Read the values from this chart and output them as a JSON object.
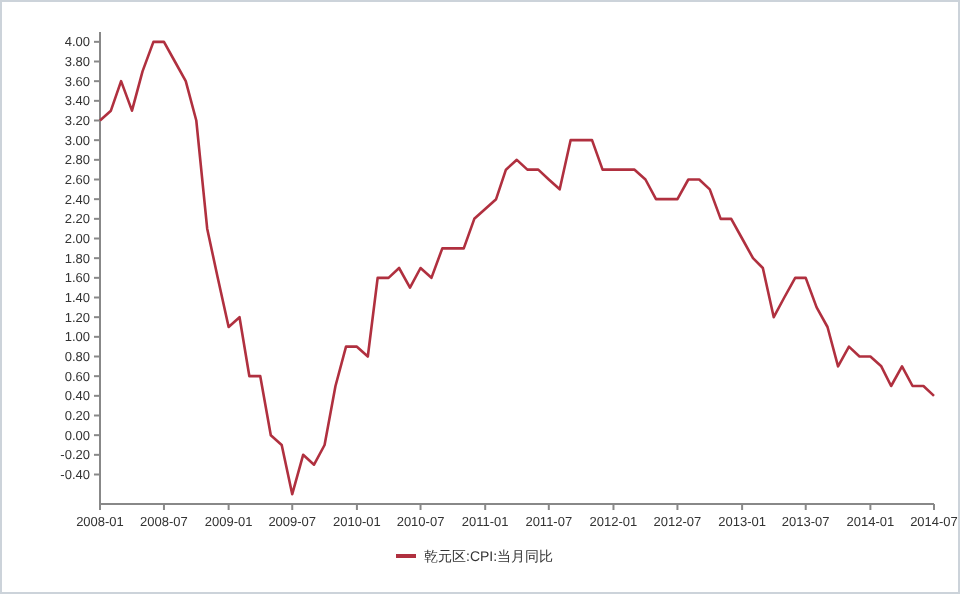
{
  "chart_data": {
    "type": "line",
    "x": [
      "2008-01",
      "2008-02",
      "2008-03",
      "2008-04",
      "2008-05",
      "2008-06",
      "2008-07",
      "2008-08",
      "2008-09",
      "2008-10",
      "2008-11",
      "2008-12",
      "2009-01",
      "2009-02",
      "2009-03",
      "2009-04",
      "2009-05",
      "2009-06",
      "2009-07",
      "2009-08",
      "2009-09",
      "2009-10",
      "2009-11",
      "2009-12",
      "2010-01",
      "2010-02",
      "2010-03",
      "2010-04",
      "2010-05",
      "2010-06",
      "2010-07",
      "2010-08",
      "2010-09",
      "2010-10",
      "2010-11",
      "2010-12",
      "2011-01",
      "2011-02",
      "2011-03",
      "2011-04",
      "2011-05",
      "2011-06",
      "2011-07",
      "2011-08",
      "2011-09",
      "2011-10",
      "2011-11",
      "2011-12",
      "2012-01",
      "2012-02",
      "2012-03",
      "2012-04",
      "2012-05",
      "2012-06",
      "2012-07",
      "2012-08",
      "2012-09",
      "2012-10",
      "2012-11",
      "2012-12",
      "2013-01",
      "2013-02",
      "2013-03",
      "2013-04",
      "2013-05",
      "2013-06",
      "2013-07",
      "2013-08",
      "2013-09",
      "2013-10",
      "2013-11",
      "2013-12",
      "2014-01",
      "2014-02",
      "2014-03",
      "2014-04",
      "2014-05",
      "2014-06",
      "2014-07"
    ],
    "series": [
      {
        "name": "乾元区:CPI:当月同比",
        "color": "#b0303f",
        "values": [
          3.2,
          3.3,
          3.6,
          3.3,
          3.7,
          4.0,
          4.0,
          3.8,
          3.6,
          3.2,
          2.1,
          1.6,
          1.1,
          1.2,
          0.6,
          0.6,
          0.0,
          -0.1,
          -0.6,
          -0.2,
          -0.3,
          -0.1,
          0.5,
          0.9,
          0.9,
          0.8,
          1.6,
          1.6,
          1.7,
          1.5,
          1.7,
          1.6,
          1.9,
          1.9,
          1.9,
          2.2,
          2.3,
          2.4,
          2.7,
          2.8,
          2.7,
          2.7,
          2.6,
          2.5,
          3.0,
          3.0,
          3.0,
          2.7,
          2.7,
          2.7,
          2.7,
          2.6,
          2.4,
          2.4,
          2.4,
          2.6,
          2.6,
          2.5,
          2.2,
          2.2,
          2.0,
          1.8,
          1.7,
          1.2,
          1.4,
          1.6,
          1.6,
          1.3,
          1.1,
          0.7,
          0.9,
          0.8,
          0.8,
          0.7,
          0.5,
          0.7,
          0.5,
          0.5,
          0.4
        ]
      }
    ],
    "xlim": [
      "2008-01",
      "2014-07"
    ],
    "xticks": [
      "2008-01",
      "2008-07",
      "2009-01",
      "2009-07",
      "2010-01",
      "2010-07",
      "2011-01",
      "2011-07",
      "2012-01",
      "2012-07",
      "2013-01",
      "2013-07",
      "2014-01",
      "2014-07"
    ],
    "ylim": [
      -0.7,
      4.1
    ],
    "yticks": [
      {
        "value": -0.4,
        "label": "-0.40"
      },
      {
        "value": -0.2,
        "label": "-0.20"
      },
      {
        "value": 0,
        "label": "0.00"
      },
      {
        "value": 0.2,
        "label": "0.20"
      },
      {
        "value": 0.4,
        "label": "0.40"
      },
      {
        "value": 0.6,
        "label": "0.60"
      },
      {
        "value": 0.8,
        "label": "0.80"
      },
      {
        "value": 1,
        "label": "1.00"
      },
      {
        "value": 1.2,
        "label": "1.20"
      },
      {
        "value": 1.4,
        "label": "1.40"
      },
      {
        "value": 1.6,
        "label": "1.60"
      },
      {
        "value": 1.8,
        "label": "1.80"
      },
      {
        "value": 2,
        "label": "2.00"
      },
      {
        "value": 2.2,
        "label": "2.20"
      },
      {
        "value": 2.4,
        "label": "2.40"
      },
      {
        "value": 2.6,
        "label": "2.60"
      },
      {
        "value": 2.8,
        "label": "2.80"
      },
      {
        "value": 3,
        "label": "3.00"
      },
      {
        "value": 3.2,
        "label": "3.20"
      },
      {
        "value": 3.4,
        "label": "3.40"
      },
      {
        "value": 3.6,
        "label": "3.60"
      },
      {
        "value": 3.8,
        "label": "3.80"
      },
      {
        "value": 4,
        "label": "4.00"
      }
    ],
    "legend": "bottom"
  }
}
